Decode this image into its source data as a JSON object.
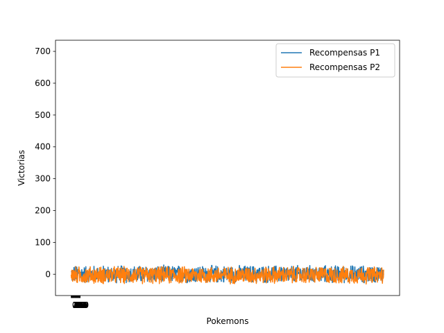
{
  "chart_data": {
    "type": "line",
    "xlabel": "Pokemons",
    "ylabel": "Victorias",
    "ylim": [
      -67,
      735
    ],
    "yticks": [
      0,
      100,
      200,
      300,
      400,
      500,
      600,
      700
    ],
    "xticks_note": "many overlapping numeric tick labels at the left edge",
    "x_count": 1000,
    "legend_position": "top-right",
    "grid": false,
    "series": [
      {
        "name": "Recompensas P1",
        "color": "#1f77b4",
        "range": [
          -30,
          30
        ],
        "mean": 0
      },
      {
        "name": "Recompensas P2",
        "color": "#ff7f0e",
        "range": [
          -30,
          30
        ],
        "mean": -3
      }
    ],
    "xtick_labels": [
      "0",
      "1",
      "2",
      "3",
      "4",
      "5",
      "6",
      "7",
      "8",
      "9",
      "10",
      "11",
      "12",
      "13",
      "14",
      "15",
      "16",
      "17",
      "18",
      "19",
      "20",
      "21",
      "22",
      "23",
      "24",
      "25",
      "26",
      "27",
      "28",
      "29"
    ]
  }
}
